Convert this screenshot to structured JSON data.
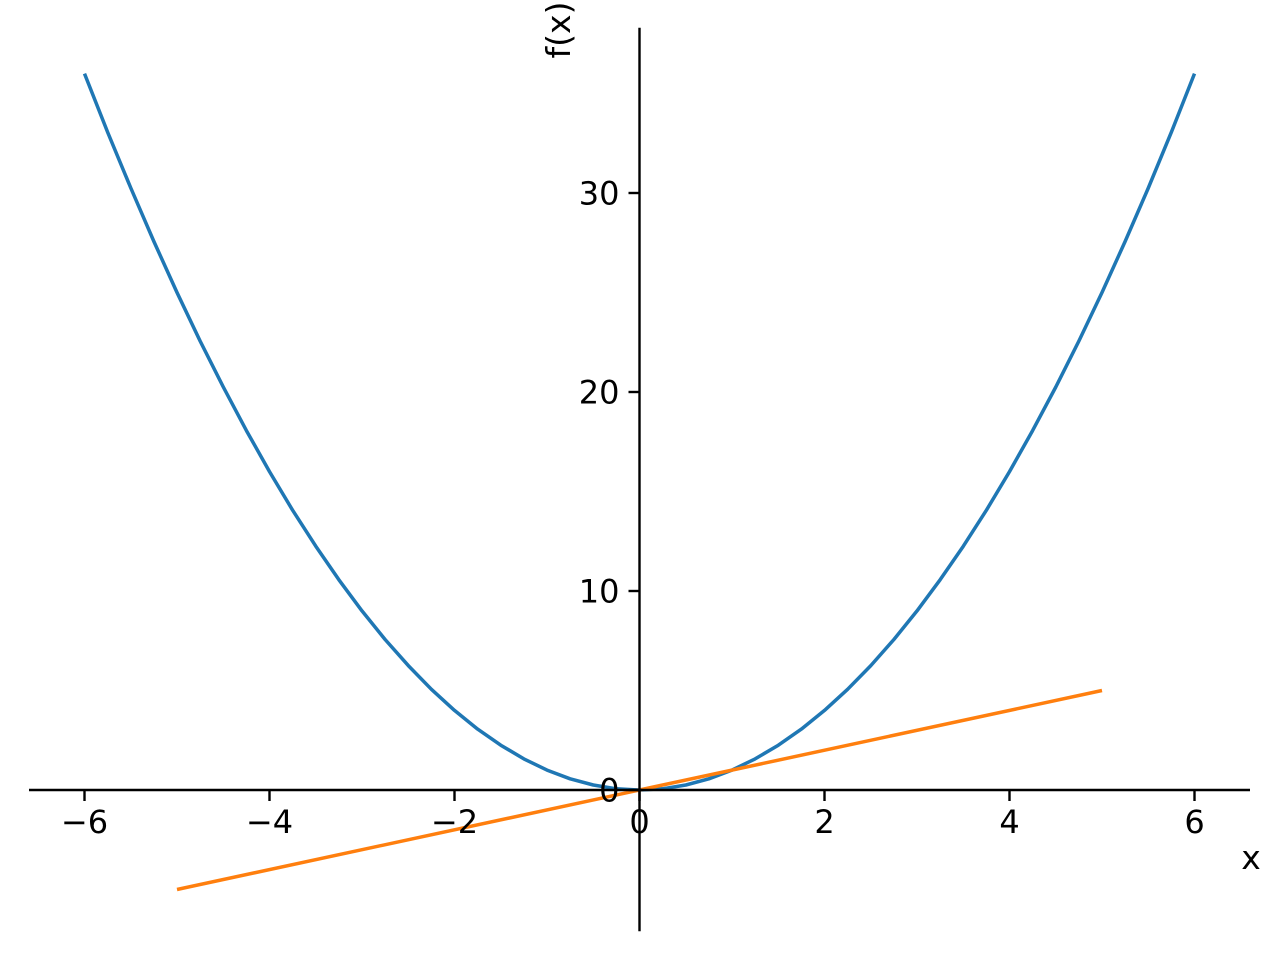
{
  "chart_data": {
    "type": "line",
    "title": "",
    "xlabel": "x",
    "ylabel": "f(x)",
    "xlim": [
      -6.6,
      6.6
    ],
    "ylim": [
      -7.1,
      38.3
    ],
    "grid": false,
    "legend": "none",
    "background_color": "#ffffff",
    "axis_color": "#000000",
    "axes_style": "spines-through-origin",
    "x_ticks": {
      "values": [
        -6,
        -4,
        -2,
        0,
        2,
        4,
        6
      ],
      "labels": [
        "−6",
        "−4",
        "−2",
        "0",
        "2",
        "4",
        "6"
      ]
    },
    "y_ticks": {
      "values": [
        0,
        10,
        20,
        30
      ],
      "labels": [
        "0",
        "10",
        "20",
        "30"
      ]
    },
    "series": [
      {
        "id": "parabola",
        "name": "f(x) = x^2 (blue parabola)",
        "color": "#1f77b4",
        "line_width": 3.5,
        "x": [
          -6,
          -5.75,
          -5.5,
          -5.25,
          -5,
          -4.75,
          -4.5,
          -4.25,
          -4,
          -3.75,
          -3.5,
          -3.25,
          -3,
          -2.75,
          -2.5,
          -2.25,
          -2,
          -1.75,
          -1.5,
          -1.25,
          -1,
          -0.75,
          -0.5,
          -0.25,
          0,
          0.25,
          0.5,
          0.75,
          1,
          1.25,
          1.5,
          1.75,
          2,
          2.25,
          2.5,
          2.75,
          3,
          3.25,
          3.5,
          3.75,
          4,
          4.25,
          4.5,
          4.75,
          5,
          5.25,
          5.5,
          5.75,
          6
        ],
        "y": [
          36,
          33.0625,
          30.25,
          27.5625,
          25,
          22.5625,
          20.25,
          18.0625,
          16,
          14.0625,
          12.25,
          10.5625,
          9,
          7.5625,
          6.25,
          5.0625,
          4,
          3.0625,
          2.25,
          1.5625,
          1,
          0.5625,
          0.25,
          0.0625,
          0,
          0.0625,
          0.25,
          0.5625,
          1,
          1.5625,
          2.25,
          3.0625,
          4,
          5.0625,
          6.25,
          7.5625,
          9,
          10.5625,
          12.25,
          14.0625,
          16,
          18.0625,
          20.25,
          22.5625,
          25,
          27.5625,
          30.25,
          33.0625,
          36
        ],
        "y_range": [
          0,
          36
        ]
      },
      {
        "id": "line",
        "name": "g(x) = x (orange straight line)",
        "color": "#ff7f0e",
        "line_width": 3.5,
        "x": [
          -5,
          5
        ],
        "y": [
          -5,
          5
        ],
        "y_range": [
          -5,
          5
        ]
      }
    ]
  }
}
